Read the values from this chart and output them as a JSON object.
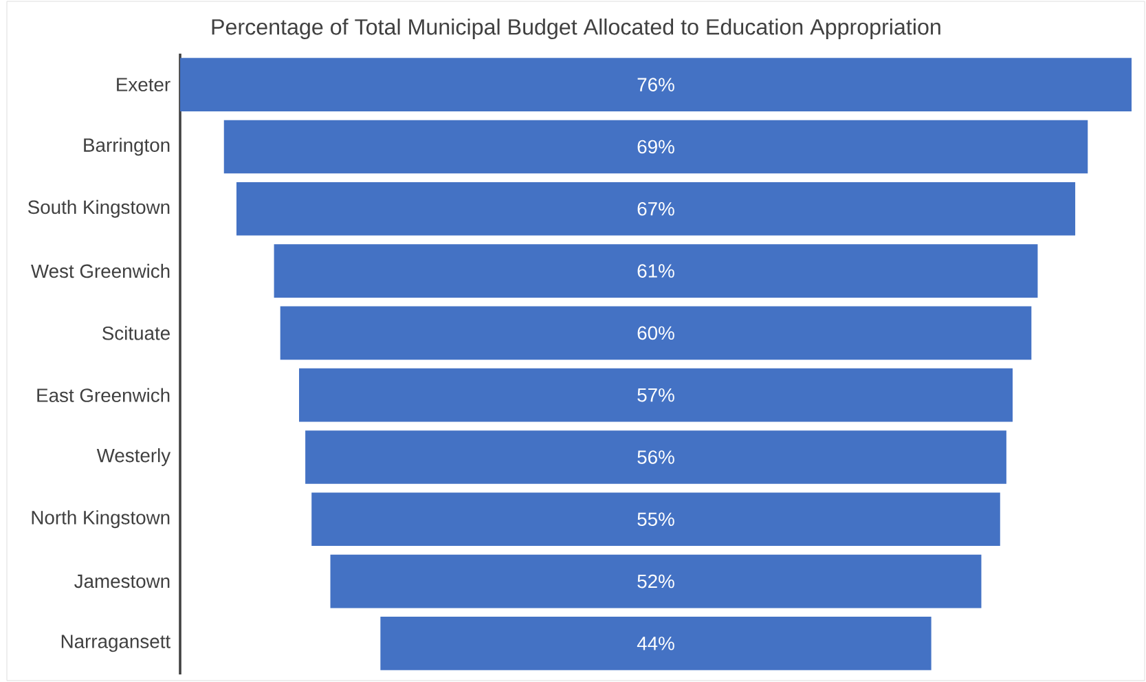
{
  "chart_data": {
    "type": "other",
    "title": "Percentage of Total Municipal Budget Allocated to Education Appropriation",
    "categories": [
      "Exeter",
      "Barrington",
      "South Kingstown",
      "West Greenwich",
      "Scituate",
      "East Greenwich",
      "Westerly",
      "North Kingstown",
      "Jamestown",
      "Narragansett"
    ],
    "values": [
      76,
      69,
      67,
      61,
      60,
      57,
      56,
      55,
      52,
      44
    ],
    "value_labels": [
      "76%",
      "69%",
      "67%",
      "61%",
      "60%",
      "57%",
      "56%",
      "55%",
      "52%",
      "44%"
    ],
    "color": "#4472c4"
  }
}
